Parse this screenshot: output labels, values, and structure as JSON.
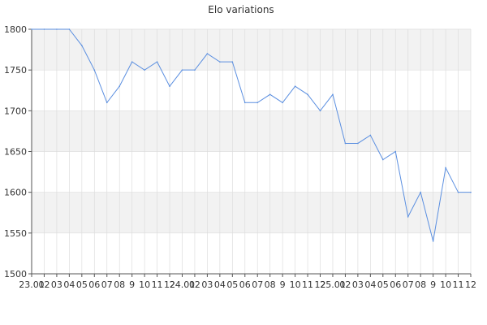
{
  "chart_data": {
    "type": "line",
    "title": "Elo variations",
    "xlabel": "",
    "ylabel": "",
    "ylim": [
      1500,
      1800
    ],
    "yticks": [
      1500,
      1550,
      1600,
      1650,
      1700,
      1750,
      1800
    ],
    "grid": true,
    "x_tick_labels": [
      "23.01",
      "02",
      "03",
      "04",
      "05",
      "06",
      "07",
      "08",
      "9",
      "10",
      "11",
      "12",
      "24.01",
      "02",
      "03",
      "04",
      "05",
      "06",
      "07",
      "08",
      "9",
      "10",
      "11",
      "12",
      "25.01",
      "02",
      "03",
      "04",
      "05",
      "06",
      "07",
      "08",
      "9",
      "10",
      "11",
      "12"
    ],
    "series": [
      {
        "values": [
          1800,
          1800,
          1800,
          1800,
          1780,
          1750,
          1710,
          1730,
          1760,
          1750,
          1760,
          1730,
          1750,
          1750,
          1770,
          1760,
          1760,
          1710,
          1710,
          1720,
          1710,
          1730,
          1720,
          1700,
          1720,
          1660,
          1660,
          1670,
          1640,
          1650,
          1570,
          1600,
          1540,
          1630,
          1600,
          1600
        ]
      }
    ],
    "colors": {
      "line": "#5b8fe0",
      "band": "#f2f2f2",
      "grid": "#dddddd",
      "axis": "#555555"
    }
  }
}
